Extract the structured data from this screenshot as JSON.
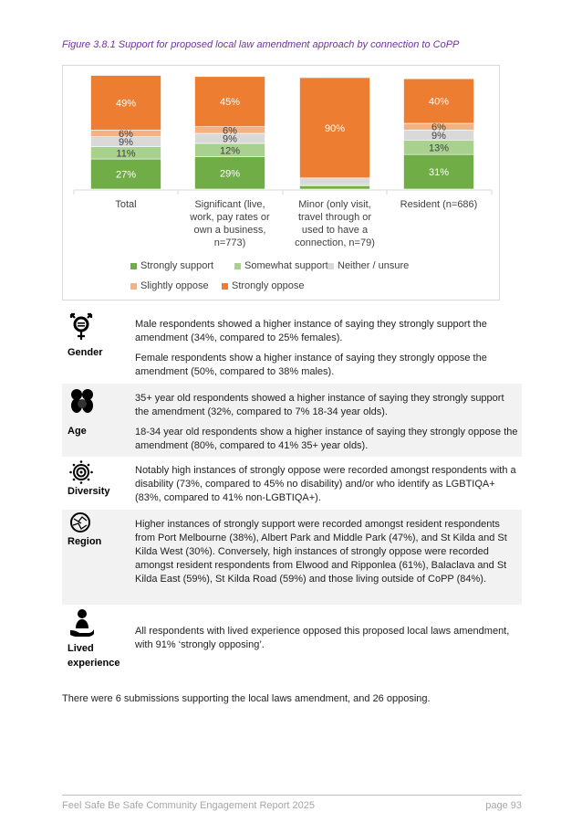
{
  "figure_title": "Figure 3.8.1 Support for proposed local law amendment approach by connection to CoPP",
  "chart_data": {
    "type": "bar",
    "stacked": true,
    "percent": true,
    "categories": [
      "Total",
      "Significant (live, work, pay rates or own a business, n=773)",
      "Minor (only visit, travel through or used to have a connection, n=79)",
      "Resident (n=686)"
    ],
    "series": [
      {
        "name": "Strongly support",
        "color": "#70ad47",
        "values": [
          27,
          29,
          3,
          31
        ],
        "labels": [
          "27%",
          "29%",
          "",
          "31%"
        ]
      },
      {
        "name": "Somewhat support",
        "color": "#a9d18e",
        "values": [
          11,
          12,
          1,
          13
        ],
        "labels": [
          "11%",
          "12%",
          "",
          "13%"
        ]
      },
      {
        "name": "Neither / unsure",
        "color": "#d9d9d9",
        "values": [
          9,
          9,
          6,
          9
        ],
        "labels": [
          "9%",
          "9%",
          "",
          "9%"
        ]
      },
      {
        "name": "Slightly oppose",
        "color": "#f4b183",
        "values": [
          6,
          6,
          0,
          6
        ],
        "labels": [
          "6%",
          "6%",
          "",
          "6%"
        ]
      },
      {
        "name": "Strongly oppose",
        "color": "#ed7d31",
        "values": [
          49,
          45,
          90,
          40
        ],
        "labels": [
          "49%",
          "45%",
          "90%",
          "40%"
        ]
      }
    ],
    "ylim": [
      0,
      100
    ],
    "grid": false,
    "legend": "bottom"
  },
  "category_lines": [
    [
      "Total"
    ],
    [
      "Significant (live,",
      "work, pay rates or",
      "own a business,",
      "n=773)"
    ],
    [
      "Minor (only visit,",
      "travel through or",
      "used to have a",
      "connection, n=79)"
    ],
    [
      "Resident (n=686)"
    ]
  ],
  "rows": [
    {
      "icon": "gender-icon",
      "label": "Gender",
      "paras": [
        "Male respondents showed a higher instance of saying they strongly support the amendment (34%, compared to 25% females).",
        "Female respondents show a higher instance of saying they strongly oppose the amendment (50%, compared to 38% males)."
      ]
    },
    {
      "icon": "people-icon",
      "label": "Age",
      "paras": [
        "35+ year old respondents showed a higher instance of saying they strongly support the amendment (32%, compared to 7% 18-34 year olds).",
        "18-34 year old respondents show a higher instance of saying they strongly oppose the amendment (80%, compared to 41% 35+ year olds)."
      ]
    },
    {
      "icon": "target-icon",
      "label": "Diversity",
      "paras": [
        "Notably high instances of strongly oppose were recorded amongst respondents with a disability (73%, compared to 45% no disability) and/or who identify as LGBTIQA+ (83%, compared to 41% non-LGBTIQA+)."
      ]
    },
    {
      "icon": "globe-icon",
      "label": "Region",
      "paras": [
        "Higher instances of strongly support were recorded amongst resident respondents from Port Melbourne (38%), Albert Park and Middle Park (47%), and St Kilda and St Kilda West (30%). Conversely, high instances of strongly oppose were recorded amongst resident respondents from Elwood and Ripponlea (61%), Balaclava and St Kilda East (59%), St Kilda Road (59%) and those living outside of CoPP (84%)."
      ]
    },
    {
      "icon": "hand-person-icon",
      "label": "Lived experience",
      "paras": [
        "All respondents with lived experience opposed this proposed local laws amendment, with 91% ‘strongly opposing’."
      ]
    }
  ],
  "body_text": "There were 6 submissions supporting the local laws amendment, and 26 opposing.",
  "footer": {
    "title": "Feel Safe Be Safe Community Engagement Report 2025",
    "page": "page 93"
  }
}
